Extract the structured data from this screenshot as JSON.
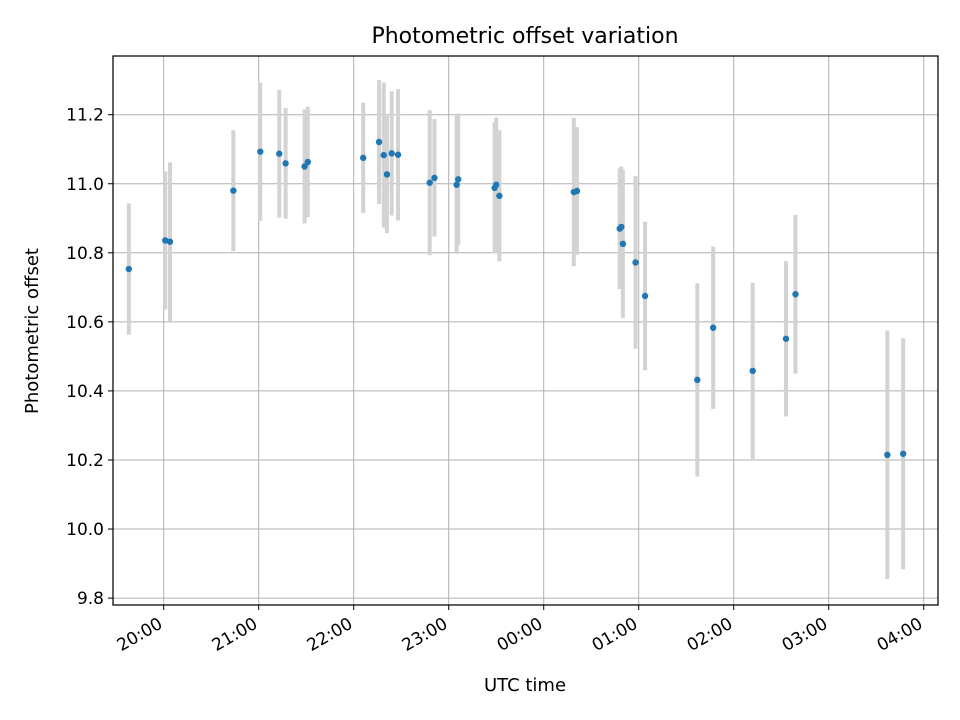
{
  "chart_data": {
    "type": "scatter",
    "title": "Photometric offset variation",
    "xlabel": "UTC time",
    "ylabel": "Photometric offset",
    "x_tick_labels": [
      "20:00",
      "21:00",
      "22:00",
      "23:00",
      "00:00",
      "01:00",
      "02:00",
      "03:00",
      "04:00"
    ],
    "y_ticks": [
      9.8,
      10.0,
      10.2,
      10.4,
      10.6,
      10.8,
      11.0,
      11.2
    ],
    "y_tick_labels": [
      "9.8",
      "10.0",
      "10.2",
      "10.4",
      "10.6",
      "10.8",
      "11.0",
      "11.2"
    ],
    "xlim": [
      "19:28",
      "04:09"
    ],
    "ylim": [
      9.78,
      11.37
    ],
    "grid": true,
    "colors": {
      "points": "#1f77b4",
      "error_bars": "#d3d3d3",
      "grid": "#b0b0b0"
    },
    "series": [
      {
        "points": [
          {
            "x": "19:38",
            "y": 10.753,
            "yerr": 0.19
          },
          {
            "x": "20:01",
            "y": 10.836,
            "yerr": 0.2
          },
          {
            "x": "20:04",
            "y": 10.832,
            "yerr": 0.23
          },
          {
            "x": "20:44",
            "y": 10.98,
            "yerr": 0.175
          },
          {
            "x": "21:01",
            "y": 11.093,
            "yerr": 0.2
          },
          {
            "x": "21:13",
            "y": 11.087,
            "yerr": 0.185
          },
          {
            "x": "21:17",
            "y": 11.059,
            "yerr": 0.16
          },
          {
            "x": "21:29",
            "y": 11.05,
            "yerr": 0.165
          },
          {
            "x": "21:31",
            "y": 11.063,
            "yerr": 0.16
          },
          {
            "x": "22:06",
            "y": 11.075,
            "yerr": 0.16
          },
          {
            "x": "22:16",
            "y": 11.121,
            "yerr": 0.18
          },
          {
            "x": "22:19",
            "y": 11.083,
            "yerr": 0.21
          },
          {
            "x": "22:21",
            "y": 11.027,
            "yerr": 0.17
          },
          {
            "x": "22:24",
            "y": 11.088,
            "yerr": 0.18
          },
          {
            "x": "22:28",
            "y": 11.084,
            "yerr": 0.19
          },
          {
            "x": "22:48",
            "y": 11.003,
            "yerr": 0.21
          },
          {
            "x": "22:51",
            "y": 11.017,
            "yerr": 0.17
          },
          {
            "x": "23:05",
            "y": 10.997,
            "yerr": 0.2
          },
          {
            "x": "23:06",
            "y": 11.013,
            "yerr": 0.19
          },
          {
            "x": "23:29",
            "y": 10.988,
            "yerr": 0.19
          },
          {
            "x": "23:30",
            "y": 10.997,
            "yerr": 0.195
          },
          {
            "x": "23:32",
            "y": 10.965,
            "yerr": 0.19
          },
          {
            "x": "00:19",
            "y": 10.976,
            "yerr": 0.215
          },
          {
            "x": "00:21",
            "y": 10.979,
            "yerr": 0.185
          },
          {
            "x": "00:48",
            "y": 10.87,
            "yerr": 0.175
          },
          {
            "x": "00:49",
            "y": 10.875,
            "yerr": 0.175
          },
          {
            "x": "00:50",
            "y": 10.826,
            "yerr": 0.215
          },
          {
            "x": "00:58",
            "y": 10.772,
            "yerr": 0.25
          },
          {
            "x": "01:04",
            "y": 10.675,
            "yerr": 0.215
          },
          {
            "x": "01:37",
            "y": 10.432,
            "yerr": 0.28
          },
          {
            "x": "01:47",
            "y": 10.583,
            "yerr": 0.235
          },
          {
            "x": "02:12",
            "y": 10.458,
            "yerr": 0.255
          },
          {
            "x": "02:33",
            "y": 10.551,
            "yerr": 0.225
          },
          {
            "x": "02:39",
            "y": 10.68,
            "yerr": 0.23
          },
          {
            "x": "03:37",
            "y": 10.215,
            "yerr": 0.36
          },
          {
            "x": "03:47",
            "y": 10.218,
            "yerr": 0.335
          }
        ]
      }
    ]
  }
}
